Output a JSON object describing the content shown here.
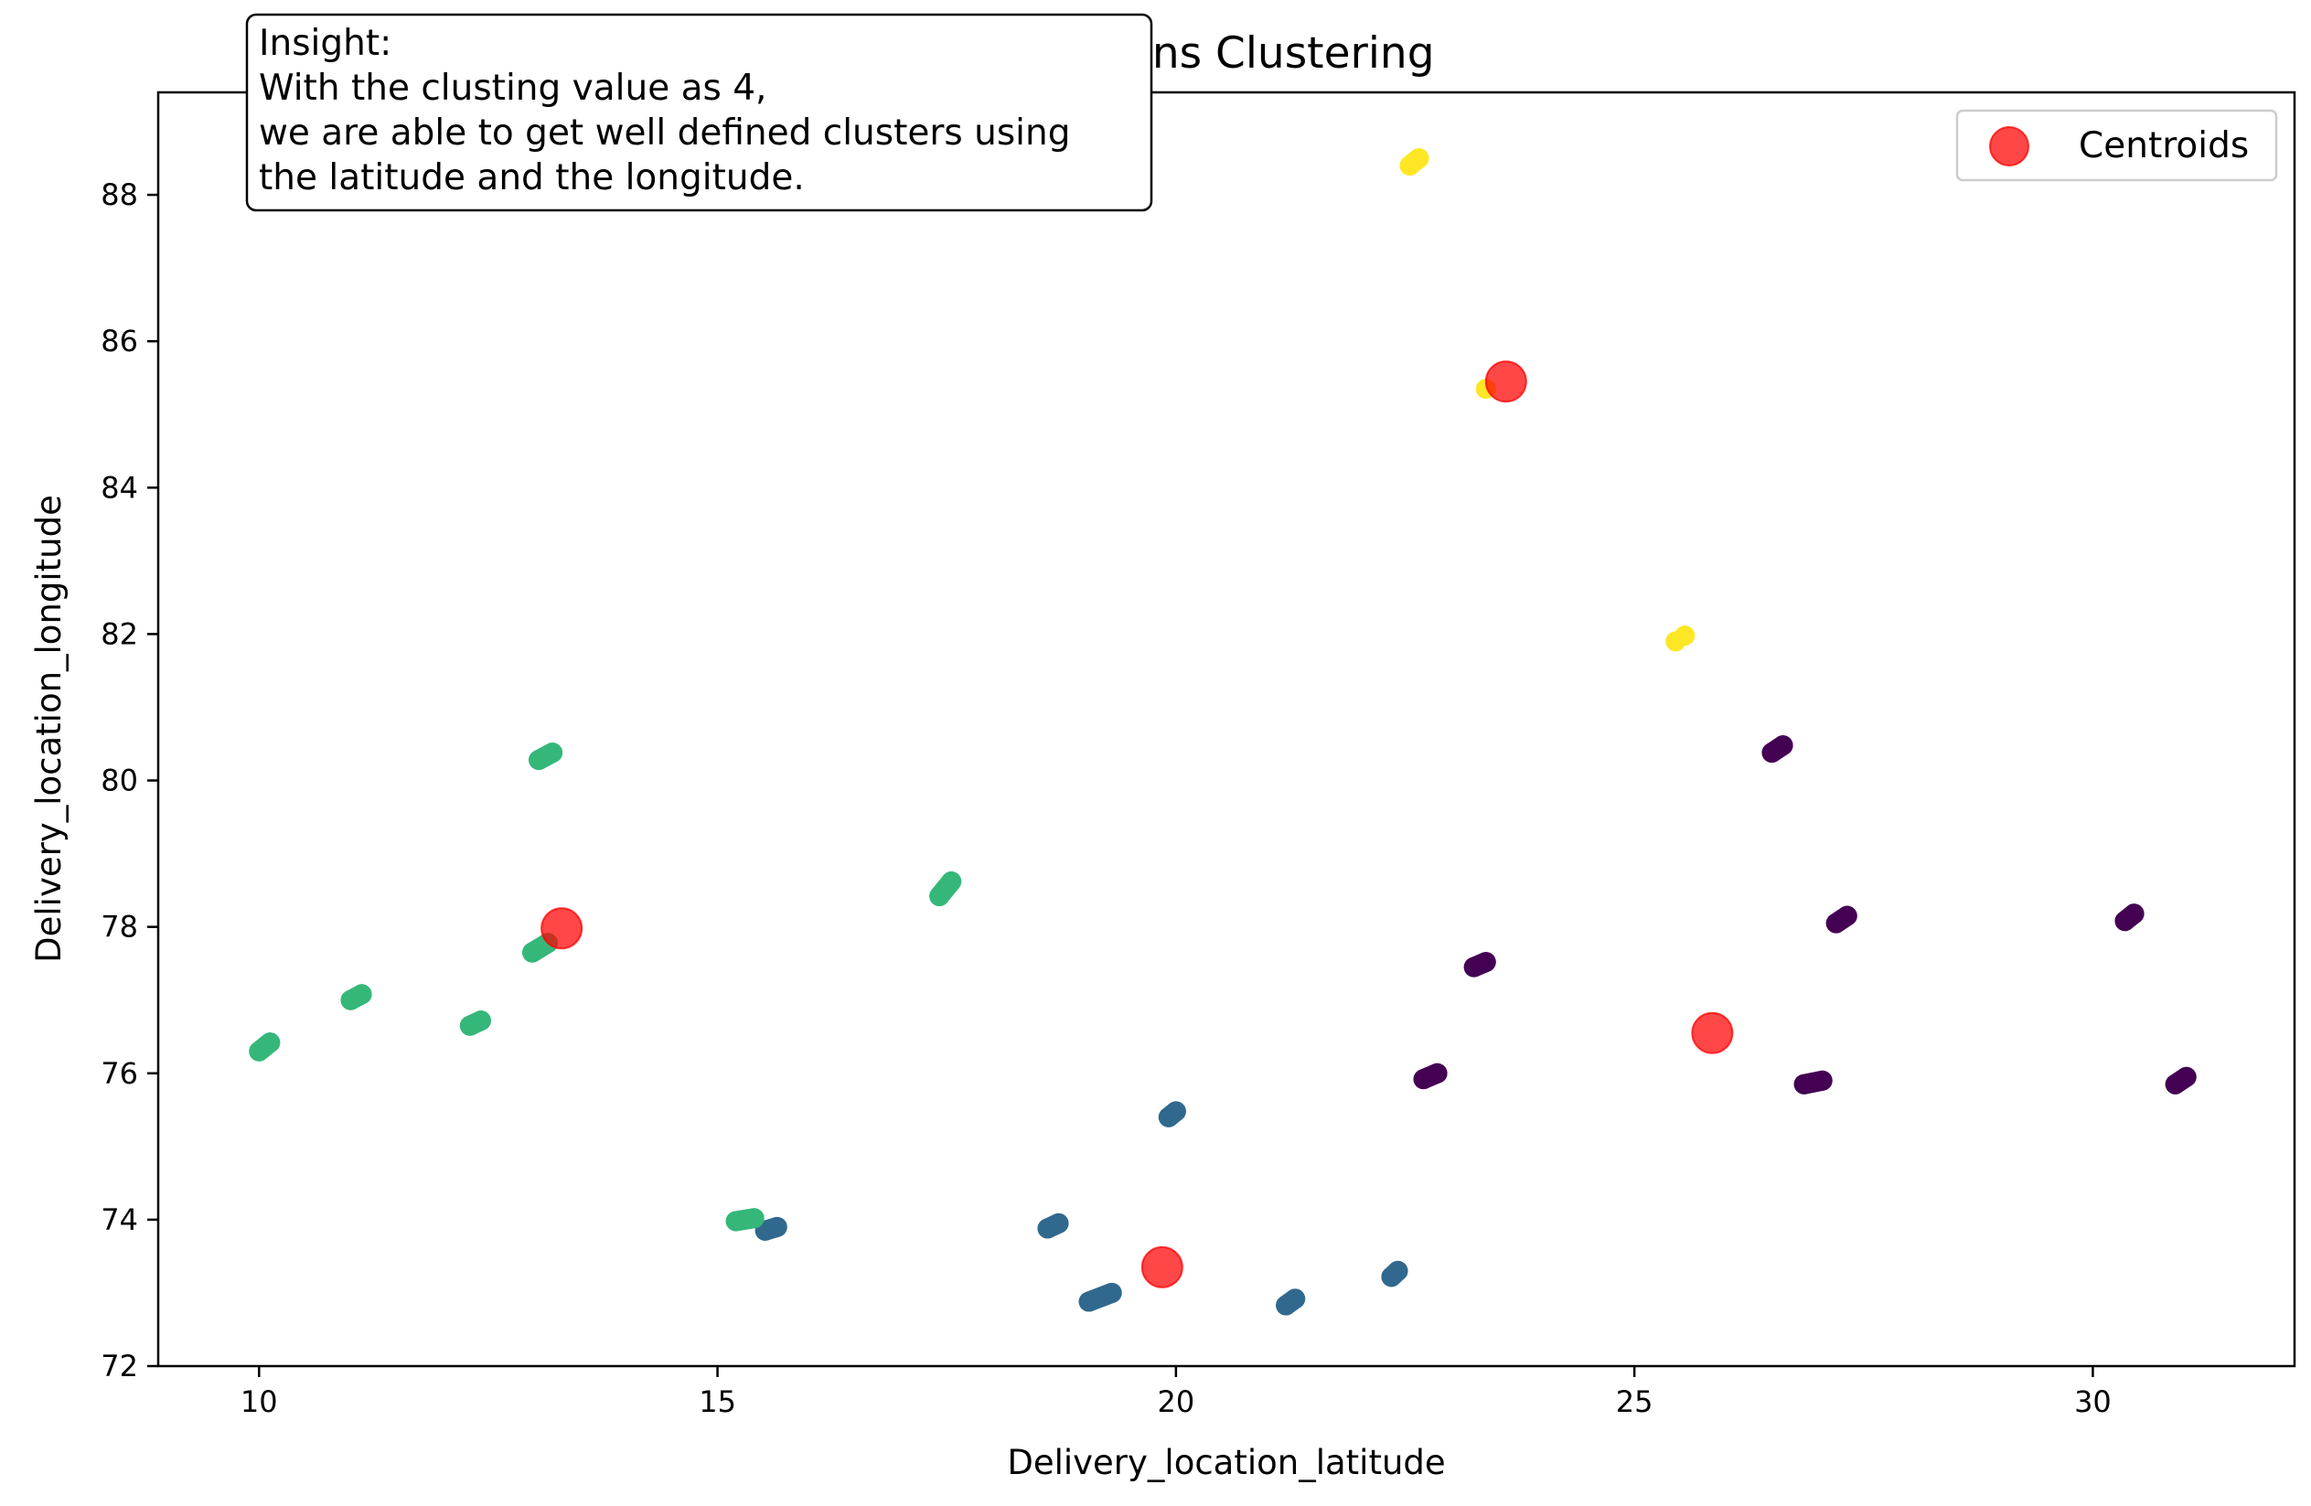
{
  "chart_data": {
    "type": "scatter",
    "title": "K-means Clustering",
    "xlabel": "Delivery_location_latitude",
    "ylabel": "Delivery_location_longitude",
    "xlim": [
      8.9,
      32.2
    ],
    "ylim": [
      72.0,
      89.4
    ],
    "xticks": [
      10,
      15,
      20,
      25,
      30
    ],
    "yticks": [
      72,
      74,
      76,
      78,
      80,
      82,
      84,
      86,
      88
    ],
    "grid": false,
    "legend": {
      "placement": "top-right",
      "entries": [
        "Centroids"
      ]
    },
    "annotation": {
      "lines": [
        "Insight:",
        "With the clusting value as 4,",
        "we are able to get well defined clusters using",
        "the latitude and the longitude."
      ],
      "placement": "top-left"
    },
    "cluster_colors": [
      "#440154",
      "#31688e",
      "#35b779",
      "#fde725"
    ],
    "centroid_color": "#ff0000",
    "clusters": [
      {
        "color": "#440154",
        "points": [
          [
            26.5,
            80.38
          ],
          [
            26.62,
            80.48
          ],
          [
            27.2,
            78.05
          ],
          [
            27.32,
            78.15
          ],
          [
            30.35,
            78.08
          ],
          [
            30.45,
            78.18
          ],
          [
            23.25,
            77.45
          ],
          [
            23.38,
            77.52
          ],
          [
            22.7,
            75.92
          ],
          [
            22.85,
            76.0
          ],
          [
            26.85,
            75.85
          ],
          [
            27.05,
            75.9
          ],
          [
            30.9,
            75.85
          ],
          [
            31.02,
            75.95
          ]
        ]
      },
      {
        "color": "#31688e",
        "points": [
          [
            19.92,
            75.4
          ],
          [
            20.0,
            75.48
          ],
          [
            15.52,
            73.85
          ],
          [
            15.65,
            73.9
          ],
          [
            18.6,
            73.88
          ],
          [
            18.72,
            73.95
          ],
          [
            19.05,
            72.88
          ],
          [
            19.3,
            73.0
          ],
          [
            21.2,
            72.83
          ],
          [
            21.3,
            72.92
          ],
          [
            22.35,
            73.22
          ],
          [
            22.42,
            73.3
          ]
        ]
      },
      {
        "color": "#35b779",
        "points": [
          [
            13.05,
            80.28
          ],
          [
            13.2,
            80.38
          ],
          [
            17.42,
            78.42
          ],
          [
            17.55,
            78.62
          ],
          [
            12.98,
            77.65
          ],
          [
            13.15,
            77.78
          ],
          [
            11.0,
            77.0
          ],
          [
            11.12,
            77.08
          ],
          [
            12.3,
            76.65
          ],
          [
            12.42,
            76.72
          ],
          [
            10.0,
            76.3
          ],
          [
            10.12,
            76.42
          ],
          [
            15.2,
            73.98
          ],
          [
            15.4,
            74.02
          ]
        ]
      },
      {
        "color": "#fde725",
        "points": [
          [
            22.55,
            88.4
          ],
          [
            22.65,
            88.5
          ],
          [
            23.38,
            85.35
          ],
          [
            25.45,
            81.9
          ],
          [
            25.55,
            81.98
          ]
        ]
      }
    ],
    "centroids": [
      [
        23.6,
        85.45
      ],
      [
        13.3,
        77.98
      ],
      [
        25.85,
        76.55
      ],
      [
        19.85,
        73.35
      ]
    ]
  }
}
